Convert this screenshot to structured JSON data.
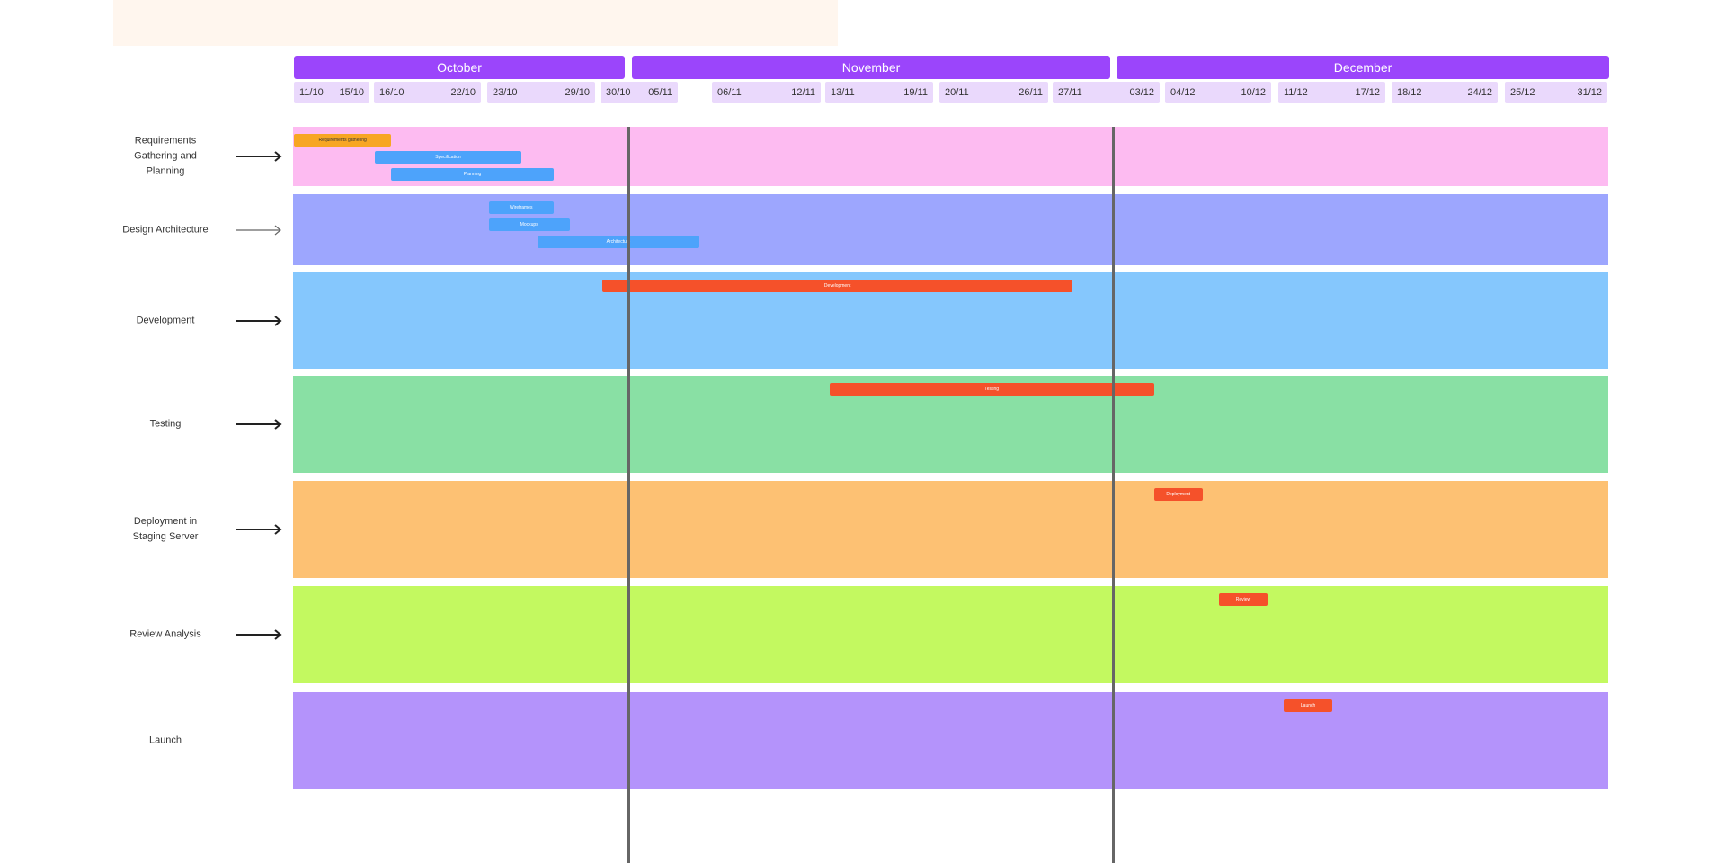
{
  "months": [
    {
      "label": "October"
    },
    {
      "label": "November"
    },
    {
      "label": "December"
    }
  ],
  "weeks": [
    {
      "a": "11/10",
      "b": "15/10"
    },
    {
      "a": "16/10",
      "b": "22/10"
    },
    {
      "a": "23/10",
      "b": "29/10"
    },
    {
      "a": "30/10",
      "b": "05/11"
    },
    {
      "a": "06/11",
      "b": "12/11"
    },
    {
      "a": "13/11",
      "b": "19/11"
    },
    {
      "a": "20/11",
      "b": "26/11"
    },
    {
      "a": "27/11",
      "b": "03/12"
    },
    {
      "a": "04/12",
      "b": "10/12"
    },
    {
      "a": "11/12",
      "b": "17/12"
    },
    {
      "a": "18/12",
      "b": "24/12"
    },
    {
      "a": "25/12",
      "b": "31/12"
    }
  ],
  "lanes": [
    {
      "label": "Requirements Gathering and Planning",
      "color": "#fdbbf1",
      "tasks": [
        {
          "label": "Requirements gathering",
          "color": "#f7a623",
          "start": "11/10",
          "end": "17/10"
        },
        {
          "label": "Specification",
          "color": "#4da3fb",
          "start": "16/10",
          "end": "25/10"
        },
        {
          "label": "Planning",
          "color": "#4da3fb",
          "start": "17/10",
          "end": "27/10"
        }
      ]
    },
    {
      "label": "Design Architecture",
      "color": "#9da6fe",
      "tasks": [
        {
          "label": "Wireframes",
          "color": "#4da3fb",
          "start": "23/10",
          "end": "27/10"
        },
        {
          "label": "Mockups",
          "color": "#4da3fb",
          "start": "23/10",
          "end": "28/10"
        },
        {
          "label": "Architecture",
          "color": "#4da3fb",
          "start": "26/10",
          "end": "05/11"
        }
      ]
    },
    {
      "label": "Development",
      "color": "#85c7fd",
      "tasks": [
        {
          "label": "Development",
          "color": "#f5512a",
          "start": "30/10",
          "end": "28/11"
        }
      ]
    },
    {
      "label": "Testing",
      "color": "#89e0a4",
      "tasks": [
        {
          "label": "Testing",
          "color": "#f5512a",
          "start": "13/11",
          "end": "03/12"
        }
      ]
    },
    {
      "label": "Deployment in Staging Server",
      "color": "#fdc173",
      "tasks": [
        {
          "label": "Deployment",
          "color": "#f5512a",
          "start": "03/12",
          "end": "06/12"
        }
      ]
    },
    {
      "label": "Review Analysis",
      "color": "#c3f960",
      "tasks": [
        {
          "label": "Review",
          "color": "#f5512a",
          "start": "07/12",
          "end": "10/12"
        }
      ]
    },
    {
      "label": "Launch",
      "color": "#b493fb",
      "tasks": [
        {
          "label": "Launch",
          "color": "#f5512a",
          "start": "11/12",
          "end": "14/12"
        }
      ]
    }
  ],
  "colors": {
    "month": "#9b45fb",
    "week": "#ead9fc",
    "divider": "#666666"
  }
}
